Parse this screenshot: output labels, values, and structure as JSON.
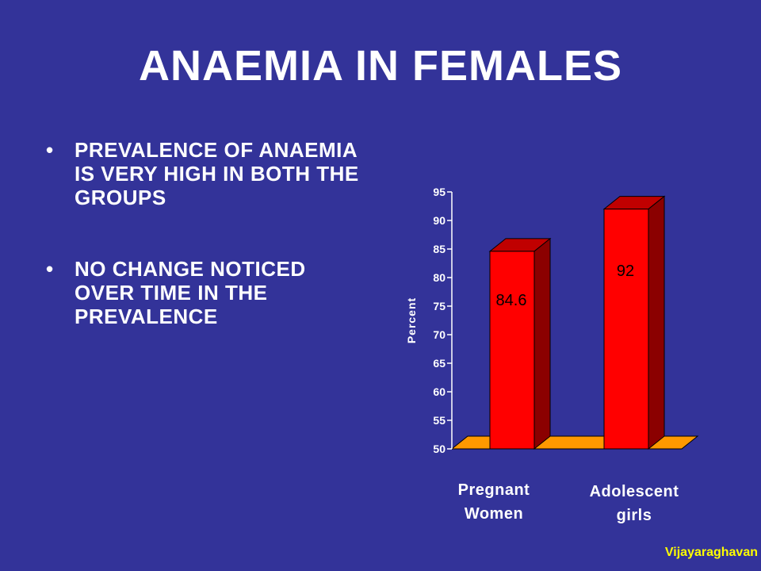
{
  "slide": {
    "title": "ANAEMIA IN FEMALES",
    "bullets": [
      {
        "text": "PREVALENCE OF ANAEMIA IS VERY HIGH IN BOTH THE GROUPS"
      },
      {
        "text": "NO CHANGE NOTICED OVER TIME IN THE PREVALENCE"
      }
    ],
    "bullet_symbol": "•",
    "credit": "Vijayaraghavan"
  },
  "chart_data": {
    "type": "bar",
    "categories": [
      "Pregnant Women",
      "Adolescent girls"
    ],
    "values": [
      84.6,
      92
    ],
    "data_labels": [
      "84.6",
      "92"
    ],
    "ylabel": "Percent",
    "xlabel": "",
    "ylim": [
      50,
      95
    ],
    "yticks": [
      50,
      55,
      60,
      65,
      70,
      75,
      80,
      85,
      90,
      95
    ],
    "grid": false,
    "style": "3d",
    "colors": {
      "bar_front": "#ff0000",
      "bar_side": "#8b0000",
      "bar_top": "#c00000",
      "floor": "#ff9900",
      "axis_text": "#ffffff",
      "data_label": "#000000",
      "credit": "#ffff00",
      "background": "#333399"
    }
  }
}
